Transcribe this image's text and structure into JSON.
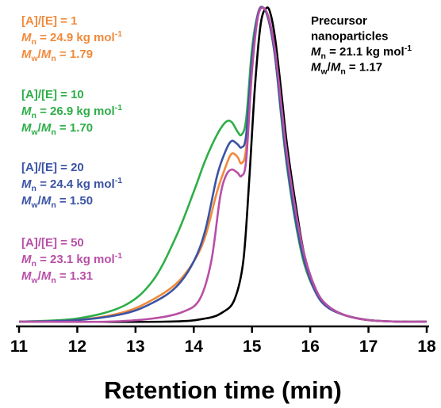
{
  "chart_data": {
    "type": "line",
    "title": "",
    "xlabel": "Retention time (min)",
    "ylabel": "",
    "xlim": [
      11,
      18
    ],
    "ylim": [
      0,
      1
    ],
    "x_ticks": [
      "11",
      "12",
      "13",
      "14",
      "15",
      "16",
      "17",
      "18"
    ],
    "y_axis_visible": false,
    "grid": false,
    "legend": "none",
    "series": [
      {
        "key": "precursor",
        "color": "#000000",
        "x": [
          11.0,
          13.5,
          14.2,
          14.5,
          14.7,
          14.85,
          14.95,
          15.05,
          15.15,
          15.25,
          15.32,
          15.4,
          15.5,
          15.6,
          15.75,
          15.9,
          16.1,
          16.3,
          16.6,
          17.0,
          17.5,
          18.0
        ],
        "y": [
          0.01,
          0.01,
          0.02,
          0.04,
          0.08,
          0.2,
          0.45,
          0.75,
          0.95,
          1.0,
          0.98,
          0.9,
          0.74,
          0.57,
          0.38,
          0.22,
          0.11,
          0.06,
          0.03,
          0.015,
          0.01,
          0.01
        ]
      },
      {
        "key": "ae1",
        "color": "#F08A3C",
        "x": [
          11.0,
          12.0,
          12.8,
          13.3,
          13.7,
          14.0,
          14.2,
          14.4,
          14.55,
          14.65,
          14.75,
          14.82,
          14.9,
          15.0,
          15.1,
          15.2,
          15.3,
          15.4,
          15.5,
          15.6,
          15.75,
          15.9,
          16.1,
          16.3,
          16.6,
          17.0,
          17.5,
          18.0
        ],
        "y": [
          0.01,
          0.015,
          0.04,
          0.08,
          0.13,
          0.2,
          0.28,
          0.42,
          0.5,
          0.54,
          0.53,
          0.51,
          0.56,
          0.82,
          0.98,
          1.0,
          0.95,
          0.85,
          0.68,
          0.52,
          0.34,
          0.2,
          0.1,
          0.055,
          0.03,
          0.015,
          0.01,
          0.01
        ]
      },
      {
        "key": "ae10",
        "color": "#2EAE48",
        "x": [
          11.0,
          12.0,
          12.8,
          13.3,
          13.7,
          14.0,
          14.2,
          14.4,
          14.55,
          14.65,
          14.75,
          14.82,
          14.9,
          15.0,
          15.1,
          15.2,
          15.3,
          15.4,
          15.5,
          15.6,
          15.75,
          15.9,
          16.1,
          16.3,
          16.6,
          17.0,
          17.5,
          18.0
        ],
        "y": [
          0.01,
          0.02,
          0.06,
          0.14,
          0.28,
          0.42,
          0.52,
          0.6,
          0.64,
          0.64,
          0.61,
          0.6,
          0.65,
          0.87,
          0.98,
          1.0,
          0.95,
          0.84,
          0.66,
          0.5,
          0.32,
          0.19,
          0.1,
          0.055,
          0.03,
          0.015,
          0.01,
          0.01
        ]
      },
      {
        "key": "ae20",
        "color": "#3A53A4",
        "x": [
          11.0,
          12.0,
          12.8,
          13.3,
          13.7,
          14.0,
          14.2,
          14.4,
          14.55,
          14.65,
          14.75,
          14.82,
          14.9,
          15.0,
          15.1,
          15.2,
          15.3,
          15.4,
          15.5,
          15.6,
          15.75,
          15.9,
          16.1,
          16.3,
          16.6,
          17.0,
          17.5,
          18.0
        ],
        "y": [
          0.01,
          0.015,
          0.035,
          0.07,
          0.12,
          0.2,
          0.3,
          0.47,
          0.55,
          0.58,
          0.57,
          0.56,
          0.6,
          0.84,
          0.98,
          1.0,
          0.95,
          0.84,
          0.67,
          0.51,
          0.33,
          0.2,
          0.1,
          0.055,
          0.03,
          0.015,
          0.01,
          0.01
        ]
      },
      {
        "key": "ae50",
        "color": "#B84FA6",
        "x": [
          11.0,
          12.5,
          13.3,
          13.8,
          14.1,
          14.3,
          14.45,
          14.55,
          14.65,
          14.75,
          14.82,
          14.9,
          15.0,
          15.1,
          15.2,
          15.3,
          15.4,
          15.5,
          15.6,
          15.75,
          15.9,
          16.1,
          16.3,
          16.6,
          17.0,
          17.5,
          18.0
        ],
        "y": [
          0.01,
          0.01,
          0.02,
          0.04,
          0.08,
          0.2,
          0.4,
          0.47,
          0.49,
          0.48,
          0.47,
          0.52,
          0.8,
          0.97,
          1.0,
          0.96,
          0.86,
          0.7,
          0.54,
          0.36,
          0.22,
          0.11,
          0.06,
          0.03,
          0.015,
          0.01,
          0.01
        ]
      }
    ]
  },
  "annotations": [
    {
      "key": "ae1",
      "color": "#F08A3C",
      "lines": [
        {
          "text": "[A]/[E] = 1"
        },
        {
          "pre": "M",
          "sub": "n",
          "post": " = 24.9 kg mol",
          "sup": "-1"
        },
        {
          "pre": "M",
          "sub": "w",
          "mid": "/",
          "pre2": "M",
          "sub2": "n",
          "post": " = 1.79"
        }
      ]
    },
    {
      "key": "ae10",
      "color": "#2EAE48",
      "lines": [
        {
          "text": "[A]/[E] = 10"
        },
        {
          "pre": "M",
          "sub": "n",
          "post": " = 26.9 kg mol",
          "sup": "-1"
        },
        {
          "pre": "M",
          "sub": "w",
          "mid": "/",
          "pre2": "M",
          "sub2": "n",
          "post": " = 1.70"
        }
      ]
    },
    {
      "key": "ae20",
      "color": "#3A53A4",
      "lines": [
        {
          "text": "[A]/[E] = 20"
        },
        {
          "pre": "M",
          "sub": "n",
          "post": " = 24.4 kg mol",
          "sup": "-1"
        },
        {
          "pre": "M",
          "sub": "w",
          "mid": "/",
          "pre2": "M",
          "sub2": "n",
          "post": " = 1.50"
        }
      ]
    },
    {
      "key": "ae50",
      "color": "#B84FA6",
      "lines": [
        {
          "text": "[A]/[E] = 50"
        },
        {
          "pre": "M",
          "sub": "n",
          "post": " = 23.1 kg mol",
          "sup": "-1"
        },
        {
          "pre": "M",
          "sub": "w",
          "mid": "/",
          "pre2": "M",
          "sub2": "n",
          "post": " = 1.31"
        }
      ]
    },
    {
      "key": "precursor",
      "color": "#000000",
      "lines": [
        {
          "text": "Precursor"
        },
        {
          "text": "nanoparticles"
        },
        {
          "pre": "M",
          "sub": "n",
          "post": " = 21.1 kg mol",
          "sup": "-1"
        },
        {
          "pre": "M",
          "sub": "w",
          "mid": "/",
          "pre2": "M",
          "sub2": "n",
          "post": " = 1.17"
        }
      ]
    }
  ]
}
